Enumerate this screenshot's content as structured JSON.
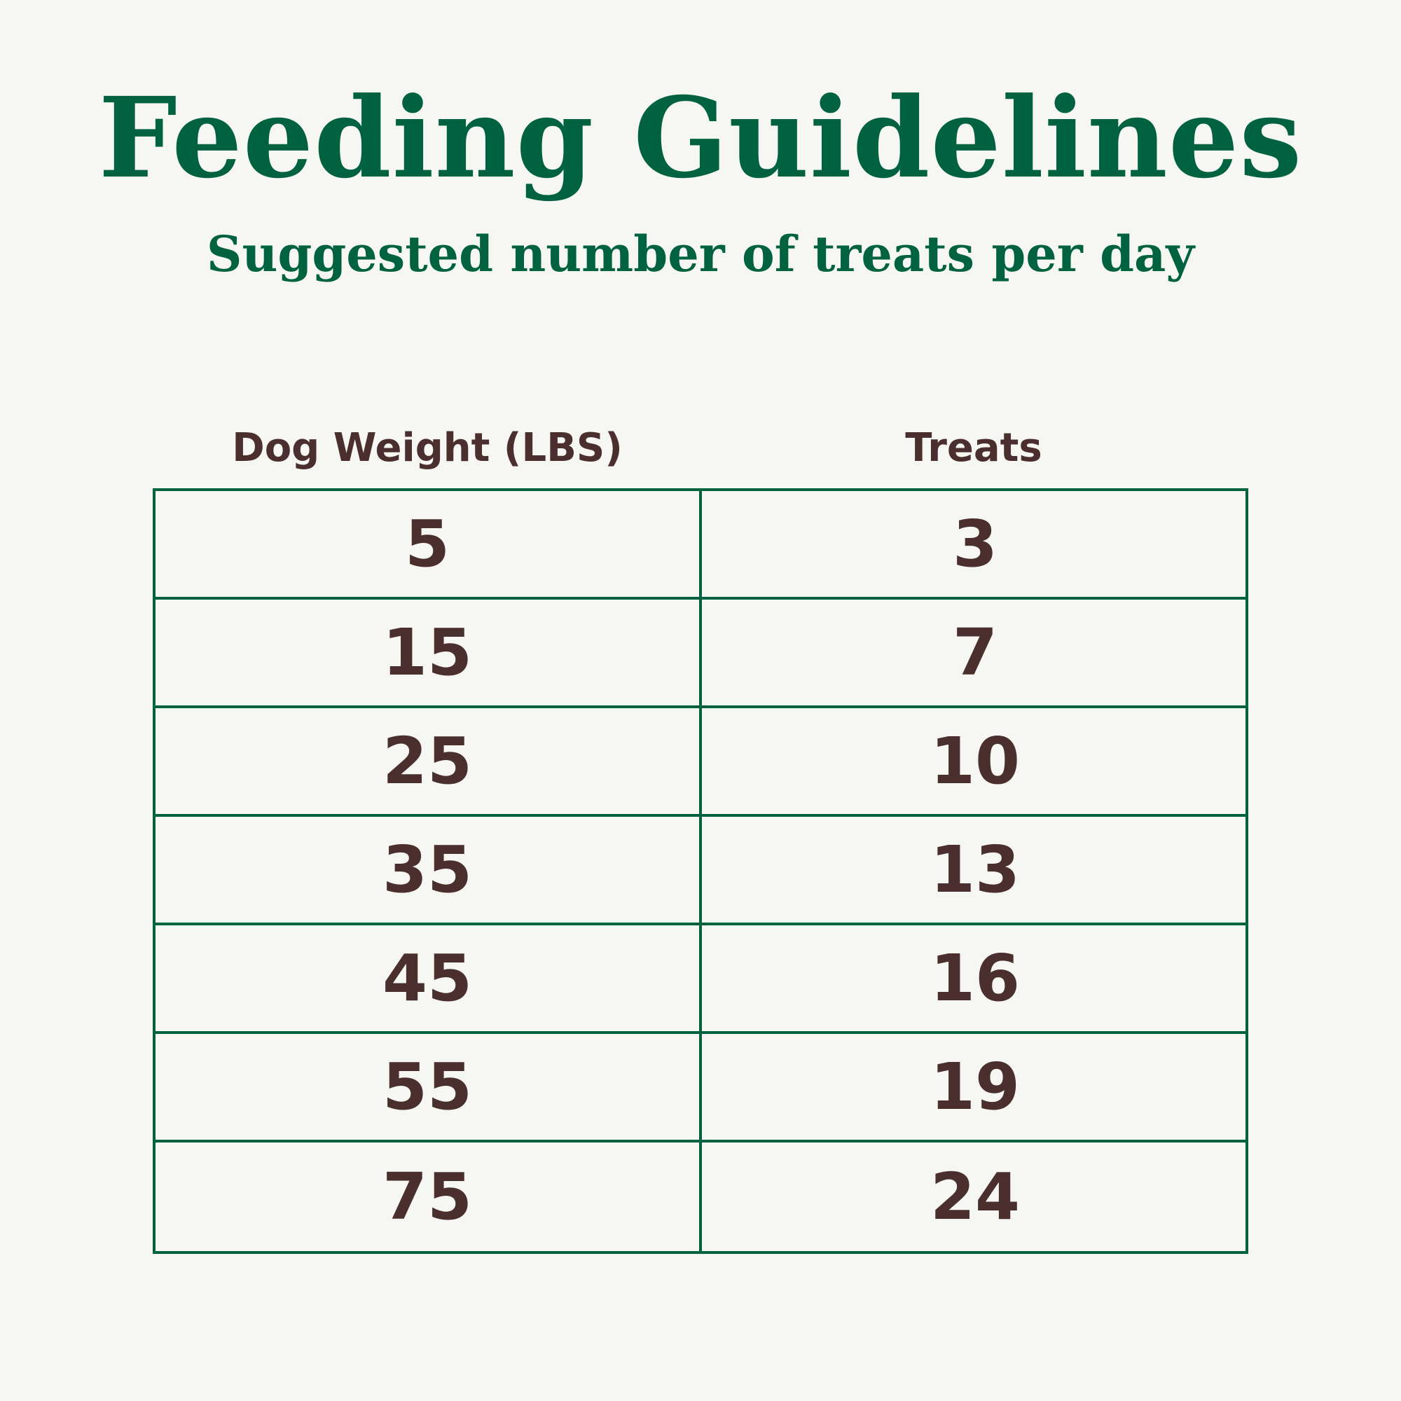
{
  "title": "Feeding Guidelines",
  "subtitle": "Suggested number of treats per day",
  "table": {
    "headers": [
      "Dog Weight (LBS)",
      "Treats"
    ],
    "rows": [
      [
        "5",
        "3"
      ],
      [
        "15",
        "7"
      ],
      [
        "25",
        "10"
      ],
      [
        "35",
        "13"
      ],
      [
        "45",
        "16"
      ],
      [
        "55",
        "19"
      ],
      [
        "75",
        "24"
      ]
    ]
  },
  "colors": {
    "accent_green": "#006241",
    "text_brown": "#4a2f2e",
    "background": "#f6f7f2"
  }
}
